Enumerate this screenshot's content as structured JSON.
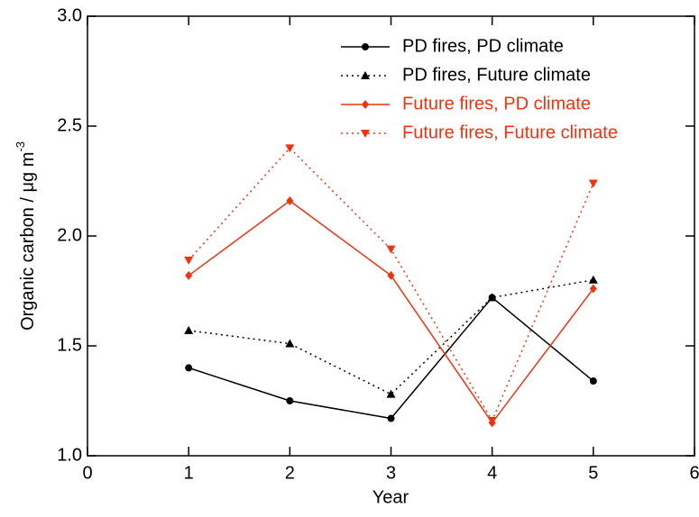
{
  "chart_data": {
    "type": "line",
    "xlabel": "Year",
    "ylabel": "Organic carbon / μg m",
    "ylabel_superscript": "-3",
    "x": [
      1,
      2,
      3,
      4,
      5
    ],
    "xlim": [
      0,
      6
    ],
    "xticks": [
      0,
      1,
      2,
      3,
      4,
      5,
      6
    ],
    "ylim": [
      1,
      3
    ],
    "yticks": [
      {
        "value": 1,
        "label": "1.0"
      },
      1.5,
      {
        "value": 2,
        "label": "2.0"
      },
      2.5,
      {
        "value": 3,
        "label": "3.0"
      }
    ],
    "grid": false,
    "legend": "top-right",
    "series": [
      {
        "name": "PD fires, PD climate",
        "color": "#000000",
        "dash": "solid",
        "marker": "circle",
        "values": [
          1.4,
          1.25,
          1.17,
          1.72,
          1.34
        ]
      },
      {
        "name": "PD fires, Future climate",
        "color": "#000000",
        "dash": "dotted",
        "marker": "triangle",
        "values": [
          1.57,
          1.51,
          1.28,
          1.72,
          1.8
        ]
      },
      {
        "name": "Future fires, PD climate",
        "color": "#ee3311",
        "dash": "solid",
        "marker": "diamond",
        "values": [
          1.82,
          2.16,
          1.82,
          1.15,
          1.76
        ]
      },
      {
        "name": "Future fires, Future climate",
        "color": "#ee3311",
        "dash": "dotted",
        "marker": "triangle-down",
        "values": [
          1.89,
          2.4,
          1.94,
          1.16,
          2.24
        ]
      }
    ]
  }
}
